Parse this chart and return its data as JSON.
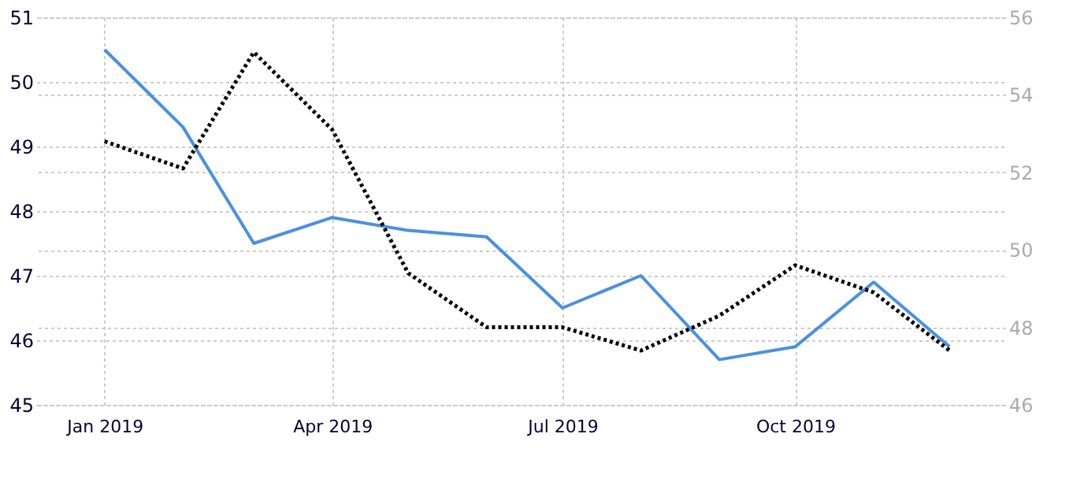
{
  "chart_data": {
    "type": "line",
    "x": [
      "2019-01",
      "2019-02",
      "2019-03",
      "2019-04",
      "2019-05",
      "2019-06",
      "2019-07",
      "2019-08",
      "2019-09",
      "2019-10",
      "2019-11",
      "2019-12"
    ],
    "series": [
      {
        "color": "#4a90e2",
        "line_style": "solid",
        "values": [
          50.5,
          49.3,
          47.5,
          47.9,
          47.7,
          47.6,
          46.5,
          47.0,
          45.7,
          45.9,
          46.9,
          45.9
        ]
      },
      {
        "color": "#000000",
        "line_style": "dotted",
        "axis": "y2",
        "values": [
          52.8,
          52.1,
          55.1,
          53.1,
          49.4,
          48.0,
          48.0,
          47.4,
          48.3,
          49.6,
          48.9,
          47.4
        ]
      }
    ],
    "xlim": [
      "2018-12-05",
      "2019-12-23"
    ],
    "xticks": [
      {
        "value": "2019-01",
        "label": "Jan 2019"
      },
      {
        "value": "2019-04",
        "label": "Apr 2019"
      },
      {
        "value": "2019-07",
        "label": "Jul 2019"
      },
      {
        "value": "2019-10",
        "label": "Oct 2019"
      }
    ],
    "ylim": [
      45,
      51
    ],
    "yticks": [
      45,
      46,
      47,
      48,
      49,
      50,
      51
    ],
    "y2lim": [
      46,
      56
    ],
    "y2ticks": [
      46,
      48,
      50,
      52,
      54,
      56
    ],
    "grid": true
  }
}
